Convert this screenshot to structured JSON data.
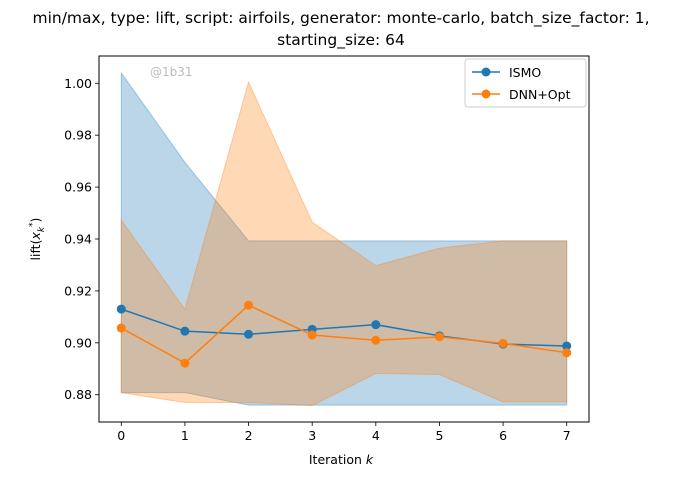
{
  "chart_data": {
    "type": "line",
    "title_line1": "min/max, type: lift, script: airfoils, generator: monte-carlo, batch_size_factor: 1,",
    "title_line2": "starting_size: 64",
    "xlabel": "Iteration k",
    "ylabel": "lift(x_k^*)",
    "watermark": "@1b31",
    "x": [
      0,
      1,
      2,
      3,
      4,
      5,
      6,
      7
    ],
    "xlim": [
      -0.35,
      7.35
    ],
    "ylim": [
      0.8695,
      1.0105
    ],
    "xticks": [
      "0",
      "1",
      "2",
      "3",
      "4",
      "5",
      "6",
      "7"
    ],
    "yticks": [
      "0.88",
      "0.90",
      "0.92",
      "0.94",
      "0.96",
      "0.98",
      "1.00"
    ],
    "ytick_values": [
      0.88,
      0.9,
      0.92,
      0.94,
      0.96,
      0.98,
      1.0
    ],
    "legend_position": "upper right",
    "grid": false,
    "series": [
      {
        "name": "ISMO",
        "color": "#1f77b4",
        "values": [
          0.913,
          0.9045,
          0.9033,
          0.9052,
          0.907,
          0.9027,
          0.8995,
          0.8988
        ],
        "min": [
          0.8808,
          0.8808,
          0.876,
          0.876,
          0.876,
          0.876,
          0.876,
          0.876
        ],
        "max": [
          1.004,
          0.9695,
          0.9393,
          0.9393,
          0.9393,
          0.9393,
          0.9393,
          0.9393
        ]
      },
      {
        "name": "DNN+Opt",
        "color": "#ff7f0e",
        "values": [
          0.9057,
          0.8922,
          0.9145,
          0.903,
          0.901,
          0.9023,
          0.8998,
          0.8962
        ],
        "min": [
          0.8808,
          0.877,
          0.877,
          0.8758,
          0.8882,
          0.8878,
          0.8772,
          0.8772
        ],
        "max": [
          0.9473,
          0.9129,
          1.0005,
          0.9465,
          0.9297,
          0.9365,
          0.9393,
          0.9393
        ]
      }
    ]
  }
}
